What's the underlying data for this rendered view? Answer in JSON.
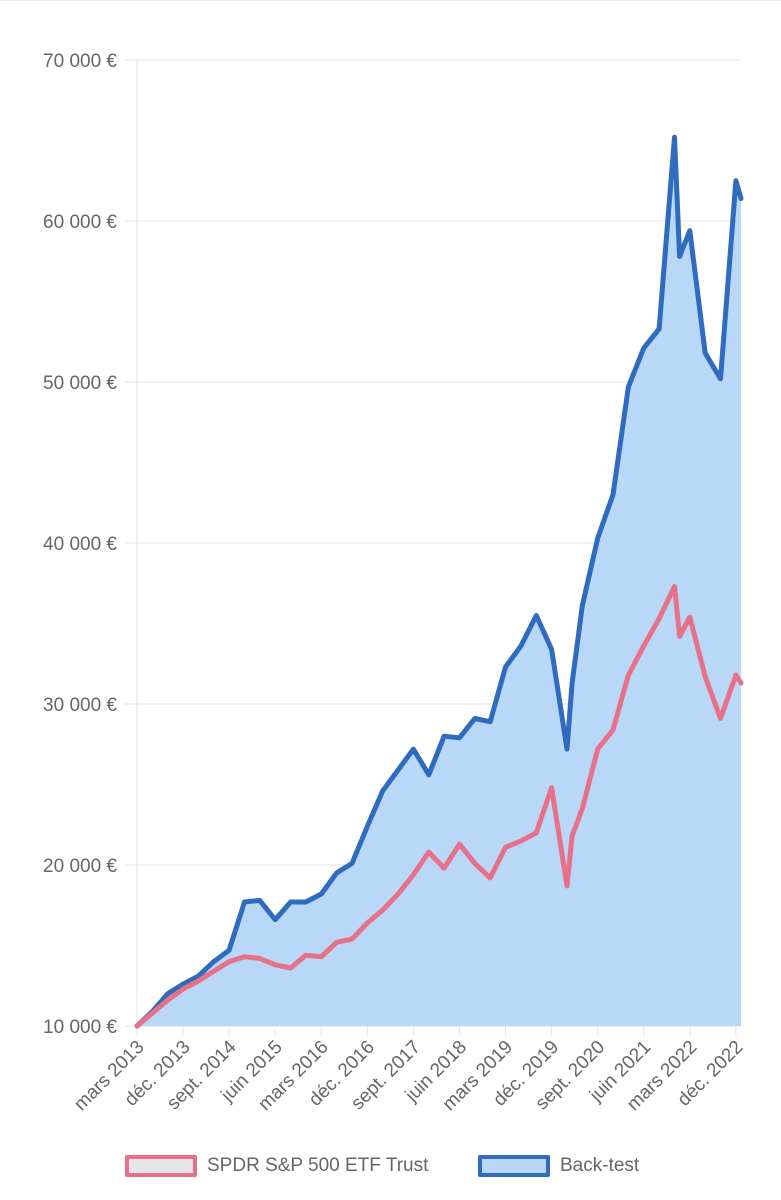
{
  "chart_data": {
    "type": "area",
    "title": "",
    "xlabel": "",
    "ylabel": "",
    "ylim": [
      10000,
      70000
    ],
    "y_ticks": [
      10000,
      20000,
      30000,
      40000,
      50000,
      60000,
      70000
    ],
    "y_tick_labels": [
      "10 000 €",
      "20 000 €",
      "30 000 €",
      "40 000 €",
      "50 000 €",
      "60 000 €",
      "70 000 €"
    ],
    "x_tick_labels": [
      "mars 2013",
      "déc. 2013",
      "sept. 2014",
      "juin 2015",
      "mars 2016",
      "déc. 2016",
      "sept. 2017",
      "juin 2018",
      "mars 2019",
      "déc. 2019",
      "sept. 2020",
      "juin 2021",
      "mars 2022",
      "déc. 2022"
    ],
    "x_start": "2013-03",
    "x_end": "2023-01",
    "grid": true,
    "legend_position": "bottom",
    "series": [
      {
        "name": "SPDR S&P 500 ETF Trust",
        "color": "#e8718a",
        "fill": "#e6e6e6",
        "x": [
          "2013-03",
          "2013-06",
          "2013-09",
          "2013-12",
          "2014-03",
          "2014-06",
          "2014-09",
          "2014-12",
          "2015-03",
          "2015-06",
          "2015-09",
          "2015-12",
          "2016-03",
          "2016-06",
          "2016-09",
          "2016-12",
          "2017-03",
          "2017-06",
          "2017-09",
          "2017-12",
          "2018-03",
          "2018-06",
          "2018-09",
          "2018-12",
          "2019-03",
          "2019-06",
          "2019-09",
          "2019-12",
          "2020-03",
          "2020-04",
          "2020-06",
          "2020-09",
          "2020-12",
          "2021-03",
          "2021-06",
          "2021-09",
          "2021-12",
          "2022-01",
          "2022-03",
          "2022-06",
          "2022-09",
          "2022-12",
          "2023-01"
        ],
        "values": [
          10000,
          10800,
          11600,
          12300,
          12800,
          13400,
          14000,
          14300,
          14200,
          13800,
          13600,
          14400,
          14300,
          15200,
          15400,
          16400,
          17200,
          18200,
          19400,
          20800,
          19800,
          21300,
          20100,
          19200,
          21100,
          21500,
          22000,
          24800,
          18700,
          21800,
          23500,
          27200,
          28400,
          31800,
          33600,
          35300,
          37300,
          34200,
          35400,
          31700,
          29100,
          31800,
          31300
        ]
      },
      {
        "name": "Back-test",
        "color": "#2f6bbe",
        "fill": "#b9d8f7",
        "x": [
          "2013-03",
          "2013-06",
          "2013-09",
          "2013-12",
          "2014-03",
          "2014-06",
          "2014-09",
          "2014-12",
          "2015-03",
          "2015-06",
          "2015-09",
          "2015-12",
          "2016-03",
          "2016-06",
          "2016-09",
          "2016-12",
          "2017-03",
          "2017-06",
          "2017-09",
          "2017-12",
          "2018-03",
          "2018-06",
          "2018-09",
          "2018-12",
          "2019-03",
          "2019-06",
          "2019-09",
          "2019-12",
          "2020-03",
          "2020-04",
          "2020-06",
          "2020-09",
          "2020-12",
          "2021-03",
          "2021-06",
          "2021-09",
          "2021-12",
          "2022-01",
          "2022-03",
          "2022-06",
          "2022-09",
          "2022-12",
          "2023-01"
        ],
        "values": [
          10000,
          10900,
          12000,
          12600,
          13100,
          14000,
          14700,
          17700,
          17800,
          16600,
          17700,
          17700,
          18200,
          19500,
          20100,
          22400,
          24600,
          25900,
          27200,
          25600,
          28000,
          27900,
          29100,
          28900,
          32300,
          33600,
          35500,
          33400,
          27200,
          31300,
          36100,
          40300,
          43000,
          49700,
          52100,
          53300,
          65200,
          57800,
          59400,
          51800,
          50200,
          62500,
          61400
        ]
      }
    ]
  }
}
